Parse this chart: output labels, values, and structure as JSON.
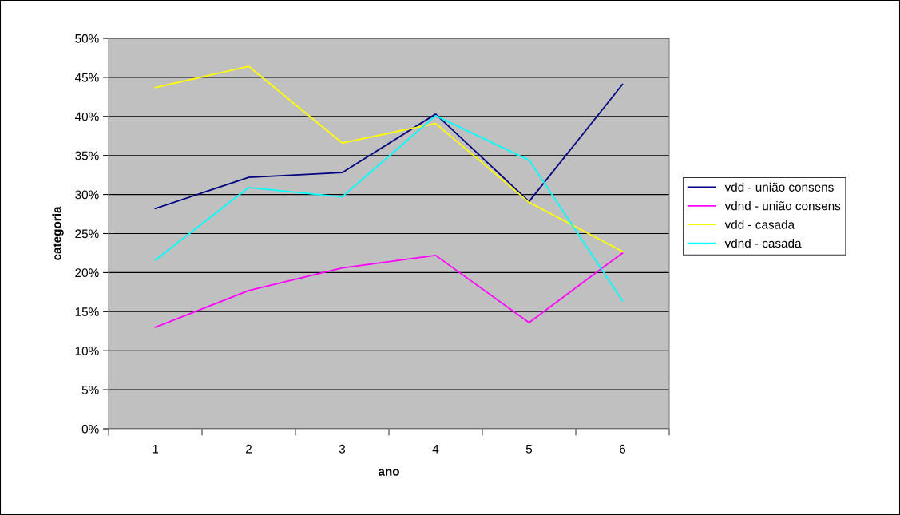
{
  "chart_data": {
    "type": "line",
    "xlabel": "ano",
    "ylabel": "categoria",
    "categories": [
      "1",
      "2",
      "3",
      "4",
      "5",
      "6"
    ],
    "series": [
      {
        "name": "vdd - união consens",
        "color": "#000080",
        "values": [
          28.2,
          32.2,
          32.8,
          40.3,
          29.1,
          44.1
        ]
      },
      {
        "name": "vdnd - união consens",
        "color": "#ff00ff",
        "values": [
          13.0,
          17.7,
          20.6,
          22.2,
          13.6,
          22.5
        ]
      },
      {
        "name": "vdd - casada",
        "color": "#ffff00",
        "values": [
          43.7,
          46.4,
          36.6,
          39.1,
          29.0,
          22.7
        ]
      },
      {
        "name": "vdnd - casada",
        "color": "#00ffff",
        "values": [
          21.6,
          30.9,
          29.7,
          40.1,
          34.4,
          16.4
        ]
      }
    ],
    "ylim": [
      0,
      50
    ],
    "yticks": [
      {
        "value": 0,
        "label": "0%"
      },
      {
        "value": 5,
        "label": "5%"
      },
      {
        "value": 10,
        "label": "10%"
      },
      {
        "value": 15,
        "label": "15%"
      },
      {
        "value": 20,
        "label": "20%"
      },
      {
        "value": 25,
        "label": "25%"
      },
      {
        "value": 30,
        "label": "30%"
      },
      {
        "value": 35,
        "label": "35%"
      },
      {
        "value": 40,
        "label": "40%"
      },
      {
        "value": 45,
        "label": "45%"
      },
      {
        "value": 50,
        "label": "50%"
      }
    ],
    "grid": "y",
    "legend": "right",
    "marker": "none",
    "line_style": "solid"
  }
}
